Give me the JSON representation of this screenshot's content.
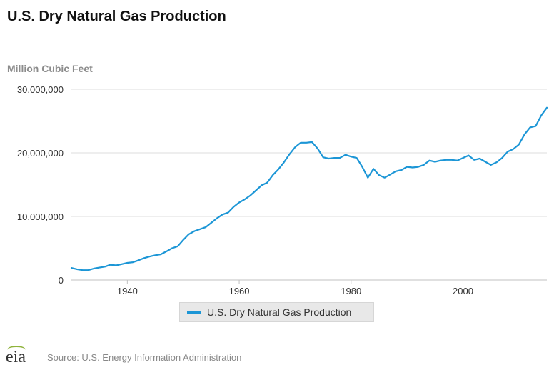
{
  "title": "U.S. Dry Natural Gas Production",
  "source": {
    "logo_text": "eia",
    "text": "Source: U.S. Energy Information Administration"
  },
  "colors": {
    "series": "#1c96d6",
    "grid": "#dddddd",
    "axis": "#c0c0c0"
  },
  "chart_data": {
    "type": "line",
    "ylabel": "Million Cubic Feet",
    "xlabel": "",
    "xlim": [
      1930,
      2015
    ],
    "ylim": [
      0,
      30000000
    ],
    "y_ticks": [
      0,
      10000000,
      20000000,
      30000000
    ],
    "y_tick_labels": [
      "0",
      "10,000,000",
      "20,000,000",
      "30,000,000"
    ],
    "x_ticks": [
      1940,
      1960,
      1980,
      2000
    ],
    "x_tick_labels": [
      "1940",
      "1960",
      "1980",
      "2000"
    ],
    "legend_position": "bottom",
    "grid": true,
    "series": [
      {
        "name": "U.S. Dry Natural Gas Production",
        "x": [
          1930,
          1931,
          1932,
          1933,
          1934,
          1935,
          1936,
          1937,
          1938,
          1939,
          1940,
          1941,
          1942,
          1943,
          1944,
          1945,
          1946,
          1947,
          1948,
          1949,
          1950,
          1951,
          1952,
          1953,
          1954,
          1955,
          1956,
          1957,
          1958,
          1959,
          1960,
          1961,
          1962,
          1963,
          1964,
          1965,
          1966,
          1967,
          1968,
          1969,
          1970,
          1971,
          1972,
          1973,
          1974,
          1975,
          1976,
          1977,
          1978,
          1979,
          1980,
          1981,
          1982,
          1983,
          1984,
          1985,
          1986,
          1987,
          1988,
          1989,
          1990,
          1991,
          1992,
          1993,
          1994,
          1995,
          1996,
          1997,
          1998,
          1999,
          2000,
          2001,
          2002,
          2003,
          2004,
          2005,
          2006,
          2007,
          2008,
          2009,
          2010,
          2011,
          2012,
          2013,
          2014,
          2015
        ],
        "values": [
          1900000,
          1700000,
          1550000,
          1550000,
          1800000,
          1950000,
          2100000,
          2400000,
          2300000,
          2500000,
          2700000,
          2800000,
          3100000,
          3450000,
          3700000,
          3900000,
          4050000,
          4500000,
          5000000,
          5300000,
          6300000,
          7200000,
          7700000,
          8000000,
          8300000,
          9000000,
          9700000,
          10300000,
          10600000,
          11500000,
          12200000,
          12700000,
          13300000,
          14100000,
          14900000,
          15300000,
          16500000,
          17400000,
          18500000,
          19800000,
          20900000,
          21600000,
          21600000,
          21700000,
          20700000,
          19300000,
          19100000,
          19200000,
          19200000,
          19700000,
          19400000,
          19200000,
          17800000,
          16100000,
          17500000,
          16500000,
          16100000,
          16600000,
          17100000,
          17300000,
          17800000,
          17700000,
          17800000,
          18100000,
          18800000,
          18600000,
          18800000,
          18900000,
          18900000,
          18800000,
          19200000,
          19600000,
          18900000,
          19100000,
          18600000,
          18100000,
          18500000,
          19200000,
          20200000,
          20600000,
          21300000,
          22900000,
          24000000,
          24200000,
          25900000,
          27100000
        ]
      }
    ]
  }
}
